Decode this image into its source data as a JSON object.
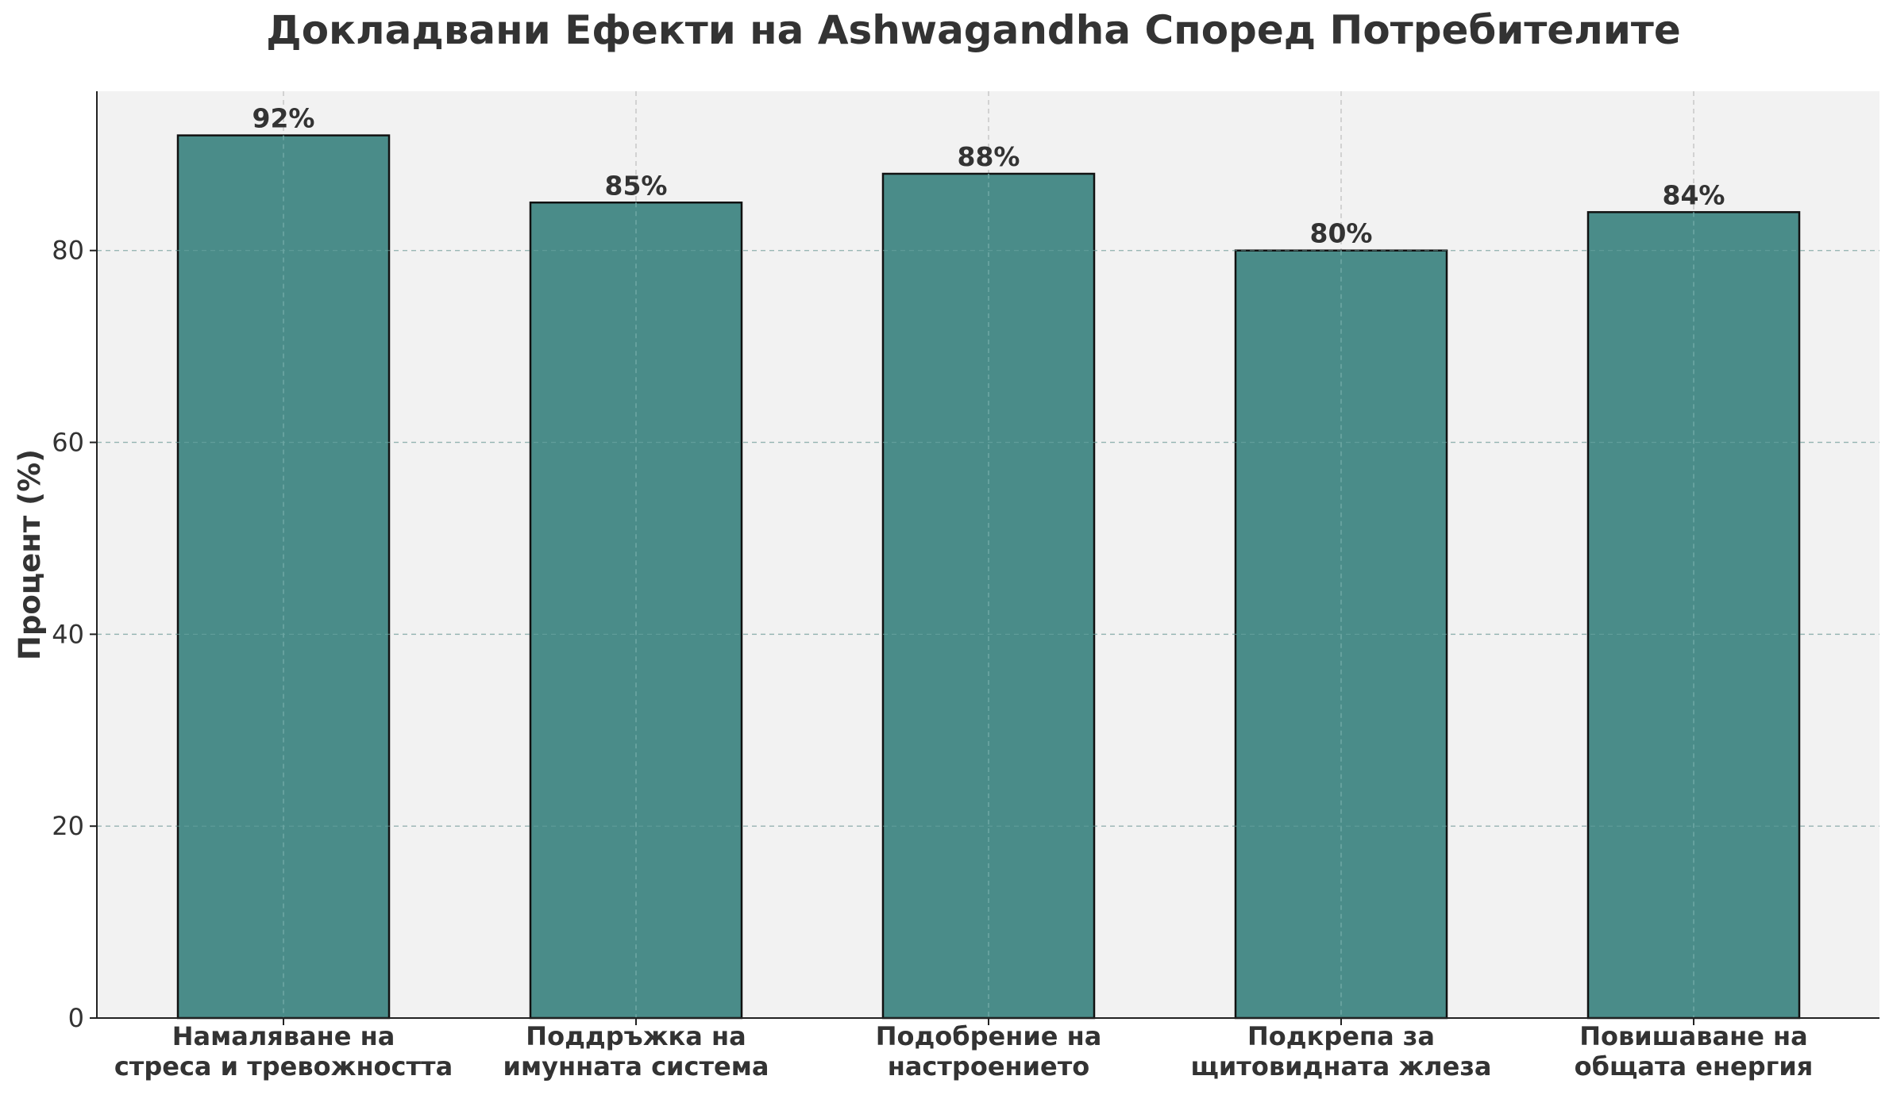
{
  "chart_data": {
    "type": "bar",
    "title": "Докладвани Ефекти на Ashwagandha Според Потребителите",
    "xlabel": "",
    "ylabel": "Процент (%)",
    "categories": [
      [
        "Намаляване на",
        "стреса и тревожността"
      ],
      [
        "Поддръжка на",
        "имунната система"
      ],
      [
        "Подобрение на",
        "настроението"
      ],
      [
        "Подкрепа за",
        "щитовидната жлеза"
      ],
      [
        "Повишаване на",
        "общата енергия"
      ]
    ],
    "values": [
      92,
      85,
      88,
      80,
      84
    ],
    "data_labels": [
      "92%",
      "85%",
      "88%",
      "80%",
      "84%"
    ],
    "yticks": [
      0,
      20,
      40,
      60,
      80
    ],
    "ylim": [
      0,
      96.6
    ],
    "grid": true,
    "colors": {
      "bar": "#4a8c89",
      "bar_edge": "#111111",
      "plot_background": "#f2f2f2",
      "grid": "#c8c8c8",
      "text": "#333333"
    }
  }
}
